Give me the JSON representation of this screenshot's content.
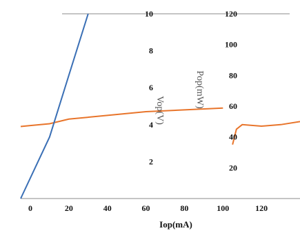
{
  "chart_data": {
    "type": "line",
    "xlabel": "Iop(mA)",
    "ylabel_left": "Vop(V)",
    "ylabel_right": "Pop(mW)",
    "x_ticks": [
      "0",
      "20",
      "40",
      "60",
      "80",
      "100",
      "120"
    ],
    "y_left_ticks": [
      "2",
      "4",
      "6",
      "8",
      "10"
    ],
    "y_right_ticks": [
      "20",
      "40",
      "60",
      "80",
      "100",
      "120"
    ],
    "xlim": [
      -5,
      140
    ],
    "ylim_left": [
      0,
      10
    ],
    "ylim_right": [
      0,
      120
    ],
    "series": [
      {
        "name": "",
        "axis": "left",
        "color": "#e8742a",
        "x": [
          -5,
          0,
          10,
          20,
          40,
          60,
          80,
          100
        ],
        "values": [
          3.9,
          3.95,
          4.05,
          4.3,
          4.5,
          4.7,
          4.8,
          4.9
        ]
      },
      {
        "name": "",
        "axis": "right",
        "color": "#e8742a",
        "x": [
          105,
          107,
          110,
          120,
          130,
          140
        ],
        "values": [
          35,
          45,
          48,
          47,
          48,
          50
        ]
      },
      {
        "name": "",
        "axis": "right",
        "color": "#3a6fb5",
        "x": [
          -5,
          10,
          20,
          30
        ],
        "values": [
          0,
          40,
          80,
          120
        ]
      }
    ]
  }
}
